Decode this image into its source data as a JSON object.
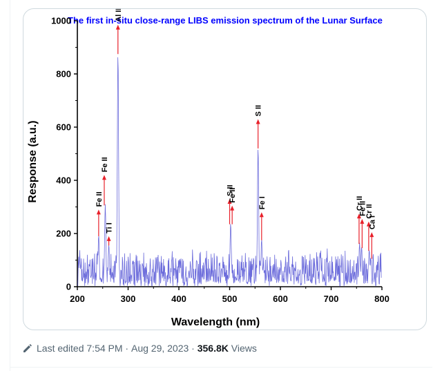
{
  "post": {
    "edited_label": "Last edited",
    "time": "7:54 PM",
    "date": "Aug 29, 2023",
    "views_count": "356.8K",
    "views_label": "Views",
    "separator": "·"
  },
  "icons": {
    "edited": "pencil-icon"
  },
  "colors": {
    "title": "#0000ff",
    "spectrum_line": "#6b6bdb",
    "arrow": "#e8202a",
    "meta_text": "#536471",
    "card_border": "#cfd9de"
  },
  "chart_data": {
    "type": "line",
    "title": "The first in-situ close-range LIBS emission spectrum of the Lunar Surface",
    "xlabel": "Wavelength (nm)",
    "ylabel": "Response (a.u.)",
    "xlim": [
      200,
      800
    ],
    "ylim": [
      0,
      1000
    ],
    "xticks": [
      200,
      300,
      400,
      500,
      600,
      700,
      800
    ],
    "yticks": [
      0,
      200,
      400,
      600,
      800,
      1000
    ],
    "grid": false,
    "legend": "none",
    "peaks": [
      {
        "x": 242,
        "y": 195
      },
      {
        "x": 255,
        "y": 310
      },
      {
        "x": 262,
        "y": 160
      },
      {
        "x": 280,
        "y": 880
      },
      {
        "x": 502,
        "y": 240
      },
      {
        "x": 556,
        "y": 525
      },
      {
        "x": 563,
        "y": 180
      },
      {
        "x": 756,
        "y": 165
      },
      {
        "x": 760,
        "y": 150
      },
      {
        "x": 775,
        "y": 140
      },
      {
        "x": 778,
        "y": 110
      }
    ],
    "annotations": [
      {
        "label": "Fe II",
        "x": 242,
        "y": 290
      },
      {
        "label": "Fe II",
        "x": 253,
        "y": 420
      },
      {
        "label": "Ti I",
        "x": 262,
        "y": 190
      },
      {
        "label": "Al II",
        "x": 280,
        "y": 985
      },
      {
        "label": "S II",
        "x": 500,
        "y": 330
      },
      {
        "label": "Fe II",
        "x": 505,
        "y": 305
      },
      {
        "label": "S II",
        "x": 556,
        "y": 630
      },
      {
        "label": "Fe I",
        "x": 563,
        "y": 280
      },
      {
        "label": "Cr II",
        "x": 755,
        "y": 275
      },
      {
        "label": "Fe II",
        "x": 761,
        "y": 255
      },
      {
        "label": "Cr II",
        "x": 774,
        "y": 245
      },
      {
        "label": "Ca I",
        "x": 780,
        "y": 205
      }
    ]
  }
}
